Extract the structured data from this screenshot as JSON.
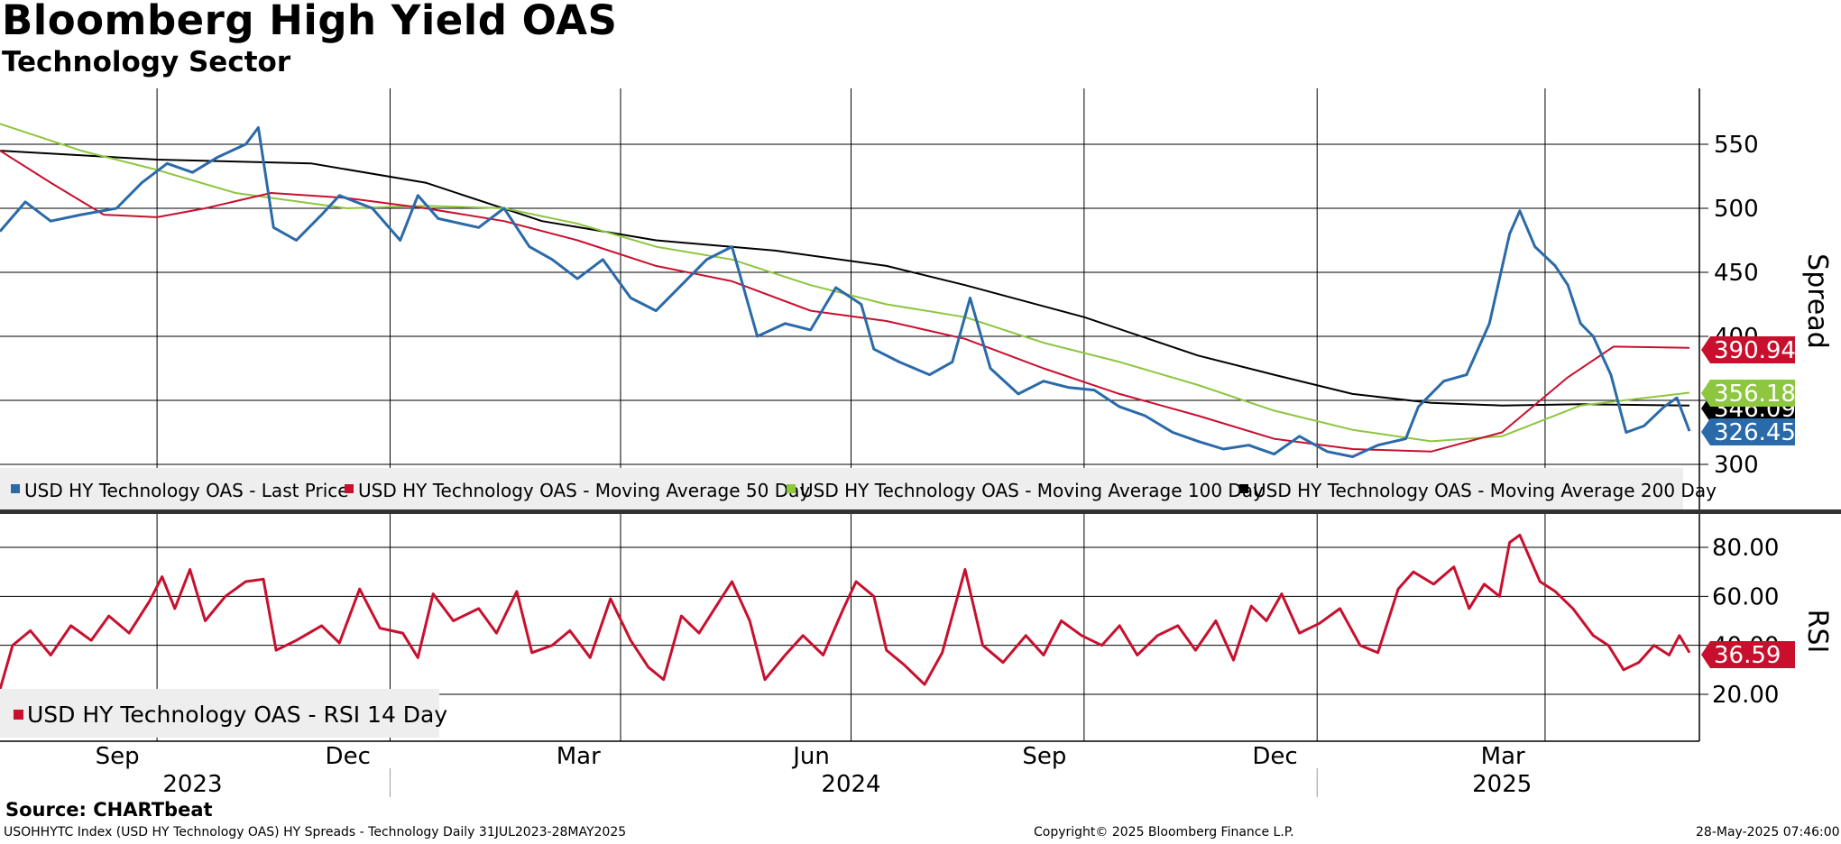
{
  "header": {
    "title": "Bloomberg High Yield OAS",
    "subtitle": "Technology Sector"
  },
  "footer": {
    "source": "Source: CHARTbeat",
    "description": "USOHHYTC Index (USD HY Technology OAS) HY Spreads - Technology  Daily 31JUL2023-28MAY2025",
    "copyright": "Copyright© 2025 Bloomberg Finance L.P.",
    "timestamp": "28-May-2025 07:46:00"
  },
  "colors": {
    "last_price": "#2a6aa8",
    "ma50": "#c8102e",
    "ma100": "#8dc63f",
    "ma200": "#000000",
    "rsi": "#c8102e"
  },
  "chart_data": [
    {
      "type": "line",
      "title": "",
      "ylabel": "Spread",
      "ylim": [
        254,
        600
      ],
      "yticks": [
        "300",
        "350",
        "400",
        "450",
        "500",
        "550"
      ],
      "x_range": [
        "2023-07-31",
        "2025-05-28"
      ],
      "xticks_month": [
        "Sep",
        "Dec",
        "Mar",
        "Jun",
        "Sep",
        "Dec",
        "Mar"
      ],
      "xticks_year": [
        "2023",
        "2024",
        "2025"
      ],
      "grid": true,
      "legend_position": "bottom",
      "series": [
        {
          "name": "USD HY Technology OAS - Last Price",
          "color_key": "last_price",
          "last_label": "326.457",
          "points": [
            [
              "2023-07-31",
              482
            ],
            [
              "2023-08-10",
              505
            ],
            [
              "2023-08-20",
              490
            ],
            [
              "2023-09-01",
              495
            ],
            [
              "2023-09-15",
              500
            ],
            [
              "2023-09-25",
              520
            ],
            [
              "2023-10-05",
              535
            ],
            [
              "2023-10-15",
              528
            ],
            [
              "2023-10-25",
              540
            ],
            [
              "2023-11-05",
              550
            ],
            [
              "2023-11-10",
              563
            ],
            [
              "2023-11-16",
              485
            ],
            [
              "2023-11-25",
              475
            ],
            [
              "2023-12-05",
              495
            ],
            [
              "2023-12-12",
              510
            ],
            [
              "2023-12-25",
              500
            ],
            [
              "2024-01-05",
              475
            ],
            [
              "2024-01-12",
              510
            ],
            [
              "2024-01-20",
              492
            ],
            [
              "2024-02-05",
              485
            ],
            [
              "2024-02-15",
              500
            ],
            [
              "2024-02-25",
              470
            ],
            [
              "2024-03-05",
              460
            ],
            [
              "2024-03-15",
              445
            ],
            [
              "2024-03-25",
              460
            ],
            [
              "2024-04-05",
              430
            ],
            [
              "2024-04-15",
              420
            ],
            [
              "2024-04-25",
              440
            ],
            [
              "2024-05-05",
              460
            ],
            [
              "2024-05-15",
              470
            ],
            [
              "2024-05-25",
              400
            ],
            [
              "2024-06-05",
              410
            ],
            [
              "2024-06-15",
              405
            ],
            [
              "2024-06-25",
              438
            ],
            [
              "2024-07-05",
              425
            ],
            [
              "2024-07-10",
              390
            ],
            [
              "2024-07-20",
              380
            ],
            [
              "2024-08-01",
              370
            ],
            [
              "2024-08-10",
              380
            ],
            [
              "2024-08-17",
              430
            ],
            [
              "2024-08-25",
              375
            ],
            [
              "2024-09-05",
              355
            ],
            [
              "2024-09-15",
              365
            ],
            [
              "2024-09-25",
              360
            ],
            [
              "2024-10-05",
              358
            ],
            [
              "2024-10-15",
              345
            ],
            [
              "2024-10-25",
              338
            ],
            [
              "2024-11-05",
              325
            ],
            [
              "2024-11-15",
              318
            ],
            [
              "2024-11-25",
              312
            ],
            [
              "2024-12-05",
              315
            ],
            [
              "2024-12-15",
              308
            ],
            [
              "2024-12-25",
              322
            ],
            [
              "2025-01-05",
              310
            ],
            [
              "2025-01-15",
              306
            ],
            [
              "2025-01-25",
              315
            ],
            [
              "2025-02-05",
              320
            ],
            [
              "2025-02-10",
              345
            ],
            [
              "2025-02-20",
              365
            ],
            [
              "2025-03-01",
              370
            ],
            [
              "2025-03-10",
              410
            ],
            [
              "2025-03-18",
              480
            ],
            [
              "2025-03-22",
              498
            ],
            [
              "2025-03-28",
              470
            ],
            [
              "2025-04-05",
              455
            ],
            [
              "2025-04-10",
              440
            ],
            [
              "2025-04-15",
              410
            ],
            [
              "2025-04-20",
              400
            ],
            [
              "2025-04-27",
              370
            ],
            [
              "2025-05-03",
              325
            ],
            [
              "2025-05-10",
              330
            ],
            [
              "2025-05-18",
              345
            ],
            [
              "2025-05-23",
              352
            ],
            [
              "2025-05-28",
              326
            ]
          ]
        },
        {
          "name": "USD HY Technology OAS - Moving Average 50 Day",
          "color_key": "ma50",
          "last_label": "390.946",
          "points": [
            [
              "2023-07-31",
              545
            ],
            [
              "2023-08-20",
              520
            ],
            [
              "2023-09-10",
              495
            ],
            [
              "2023-10-01",
              493
            ],
            [
              "2023-10-20",
              500
            ],
            [
              "2023-11-15",
              512
            ],
            [
              "2023-12-15",
              508
            ],
            [
              "2024-01-15",
              500
            ],
            [
              "2024-02-15",
              490
            ],
            [
              "2024-03-15",
              475
            ],
            [
              "2024-04-15",
              455
            ],
            [
              "2024-05-15",
              443
            ],
            [
              "2024-06-15",
              420
            ],
            [
              "2024-07-15",
              412
            ],
            [
              "2024-08-15",
              398
            ],
            [
              "2024-09-15",
              375
            ],
            [
              "2024-10-15",
              355
            ],
            [
              "2024-11-15",
              338
            ],
            [
              "2024-12-15",
              320
            ],
            [
              "2025-01-15",
              312
            ],
            [
              "2025-02-15",
              310
            ],
            [
              "2025-03-15",
              325
            ],
            [
              "2025-04-10",
              368
            ],
            [
              "2025-04-28",
              392
            ],
            [
              "2025-05-28",
              391
            ]
          ]
        },
        {
          "name": "USD HY Technology OAS - Moving Average 100 Day",
          "color_key": "ma100",
          "last_label": "356.186",
          "points": [
            [
              "2023-07-31",
              566
            ],
            [
              "2023-09-01",
              545
            ],
            [
              "2023-10-01",
              530
            ],
            [
              "2023-11-01",
              512
            ],
            [
              "2023-12-15",
              500
            ],
            [
              "2024-01-15",
              502
            ],
            [
              "2024-02-15",
              500
            ],
            [
              "2024-03-15",
              488
            ],
            [
              "2024-04-15",
              470
            ],
            [
              "2024-05-15",
              460
            ],
            [
              "2024-06-15",
              440
            ],
            [
              "2024-07-15",
              425
            ],
            [
              "2024-08-15",
              415
            ],
            [
              "2024-09-15",
              395
            ],
            [
              "2024-10-15",
              380
            ],
            [
              "2024-11-15",
              362
            ],
            [
              "2024-12-15",
              342
            ],
            [
              "2025-01-15",
              327
            ],
            [
              "2025-02-15",
              318
            ],
            [
              "2025-03-15",
              322
            ],
            [
              "2025-04-15",
              346
            ],
            [
              "2025-05-28",
              356
            ]
          ]
        },
        {
          "name": "USD HY Technology OAS - Moving Average 200 Day",
          "color_key": "ma200",
          "last_label": "346.092",
          "points": [
            [
              "2023-07-31",
              545
            ],
            [
              "2023-10-01",
              538
            ],
            [
              "2023-12-01",
              535
            ],
            [
              "2024-01-15",
              520
            ],
            [
              "2024-03-01",
              490
            ],
            [
              "2024-04-15",
              475
            ],
            [
              "2024-06-01",
              467
            ],
            [
              "2024-07-15",
              455
            ],
            [
              "2024-08-15",
              440
            ],
            [
              "2024-10-01",
              415
            ],
            [
              "2024-11-15",
              385
            ],
            [
              "2024-12-15",
              370
            ],
            [
              "2025-01-15",
              355
            ],
            [
              "2025-02-15",
              348
            ],
            [
              "2025-03-15",
              346
            ],
            [
              "2025-04-15",
              347
            ],
            [
              "2025-05-28",
              346
            ]
          ]
        }
      ]
    },
    {
      "type": "line",
      "title": "",
      "ylabel": "RSI",
      "ylim": [
        0,
        92
      ],
      "yticks": [
        "20.00",
        "40.00",
        "60.00",
        "80.00"
      ],
      "x_range": [
        "2023-07-31",
        "2025-05-28"
      ],
      "grid": true,
      "legend_position": "bottom-left",
      "series": [
        {
          "name": "USD HY Technology OAS - RSI 14 Day",
          "color_key": "rsi",
          "last_label": "36.59",
          "points": [
            [
              "2023-07-31",
              22
            ],
            [
              "2023-08-05",
              40
            ],
            [
              "2023-08-12",
              46
            ],
            [
              "2023-08-20",
              36
            ],
            [
              "2023-08-28",
              48
            ],
            [
              "2023-09-05",
              42
            ],
            [
              "2023-09-12",
              52
            ],
            [
              "2023-09-20",
              45
            ],
            [
              "2023-09-28",
              58
            ],
            [
              "2023-10-03",
              68
            ],
            [
              "2023-10-08",
              55
            ],
            [
              "2023-10-14",
              71
            ],
            [
              "2023-10-20",
              50
            ],
            [
              "2023-10-28",
              60
            ],
            [
              "2023-11-05",
              66
            ],
            [
              "2023-11-12",
              67
            ],
            [
              "2023-11-17",
              38
            ],
            [
              "2023-11-25",
              42
            ],
            [
              "2023-12-05",
              48
            ],
            [
              "2023-12-12",
              41
            ],
            [
              "2023-12-20",
              63
            ],
            [
              "2023-12-28",
              47
            ],
            [
              "2024-01-06",
              45
            ],
            [
              "2024-01-12",
              35
            ],
            [
              "2024-01-18",
              61
            ],
            [
              "2024-01-26",
              50
            ],
            [
              "2024-02-05",
              55
            ],
            [
              "2024-02-12",
              45
            ],
            [
              "2024-02-20",
              62
            ],
            [
              "2024-02-26",
              37
            ],
            [
              "2024-03-05",
              40
            ],
            [
              "2024-03-12",
              46
            ],
            [
              "2024-03-20",
              35
            ],
            [
              "2024-03-28",
              59
            ],
            [
              "2024-04-05",
              42
            ],
            [
              "2024-04-12",
              31
            ],
            [
              "2024-04-18",
              26
            ],
            [
              "2024-04-25",
              52
            ],
            [
              "2024-05-02",
              45
            ],
            [
              "2024-05-10",
              58
            ],
            [
              "2024-05-15",
              66
            ],
            [
              "2024-05-22",
              50
            ],
            [
              "2024-05-28",
              26
            ],
            [
              "2024-06-05",
              36
            ],
            [
              "2024-06-12",
              44
            ],
            [
              "2024-06-20",
              36
            ],
            [
              "2024-06-28",
              55
            ],
            [
              "2024-07-03",
              66
            ],
            [
              "2024-07-10",
              60
            ],
            [
              "2024-07-15",
              38
            ],
            [
              "2024-07-22",
              32
            ],
            [
              "2024-07-30",
              24
            ],
            [
              "2024-08-06",
              37
            ],
            [
              "2024-08-15",
              71
            ],
            [
              "2024-08-22",
              40
            ],
            [
              "2024-08-30",
              33
            ],
            [
              "2024-09-08",
              44
            ],
            [
              "2024-09-15",
              36
            ],
            [
              "2024-09-22",
              50
            ],
            [
              "2024-09-30",
              44
            ],
            [
              "2024-10-08",
              40
            ],
            [
              "2024-10-15",
              48
            ],
            [
              "2024-10-22",
              36
            ],
            [
              "2024-10-30",
              44
            ],
            [
              "2024-11-07",
              48
            ],
            [
              "2024-11-14",
              38
            ],
            [
              "2024-11-22",
              50
            ],
            [
              "2024-11-29",
              34
            ],
            [
              "2024-12-06",
              56
            ],
            [
              "2024-12-12",
              50
            ],
            [
              "2024-12-18",
              61
            ],
            [
              "2024-12-25",
              45
            ],
            [
              "2025-01-02",
              49
            ],
            [
              "2025-01-10",
              55
            ],
            [
              "2025-01-18",
              40
            ],
            [
              "2025-01-25",
              37
            ],
            [
              "2025-02-02",
              63
            ],
            [
              "2025-02-08",
              70
            ],
            [
              "2025-02-16",
              65
            ],
            [
              "2025-02-24",
              72
            ],
            [
              "2025-03-02",
              55
            ],
            [
              "2025-03-08",
              65
            ],
            [
              "2025-03-14",
              60
            ],
            [
              "2025-03-18",
              82
            ],
            [
              "2025-03-22",
              85
            ],
            [
              "2025-03-30",
              66
            ],
            [
              "2025-04-05",
              62
            ],
            [
              "2025-04-12",
              55
            ],
            [
              "2025-04-20",
              44
            ],
            [
              "2025-04-26",
              40
            ],
            [
              "2025-05-02",
              30
            ],
            [
              "2025-05-08",
              33
            ],
            [
              "2025-05-14",
              40
            ],
            [
              "2025-05-20",
              36
            ],
            [
              "2025-05-24",
              44
            ],
            [
              "2025-05-28",
              37
            ]
          ]
        }
      ]
    }
  ]
}
